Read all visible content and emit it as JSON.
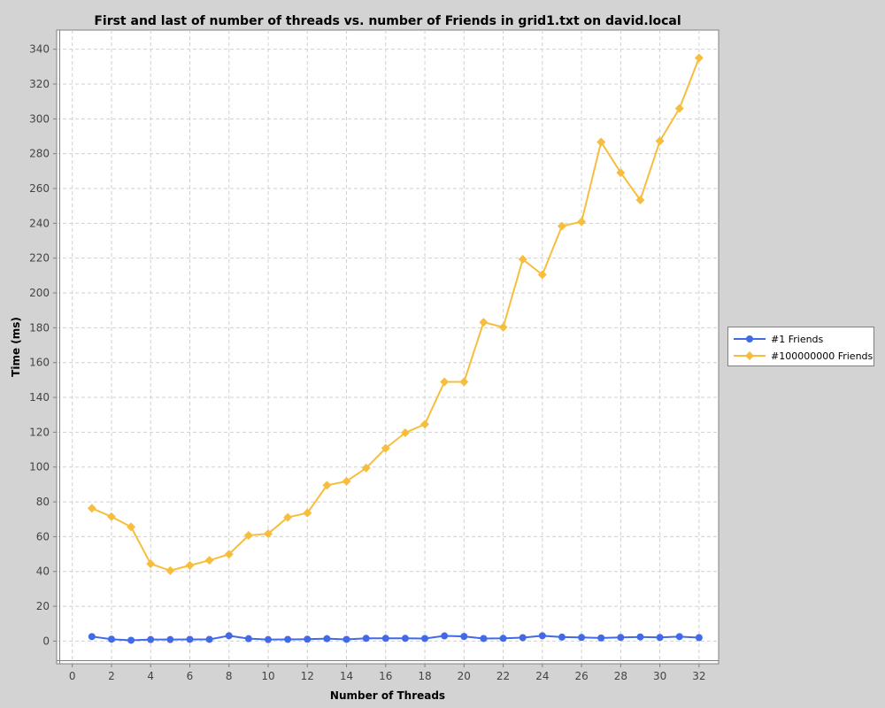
{
  "chart_data": {
    "type": "line",
    "title": "First and last of number of threads vs. number of Friends in grid1.txt on david.local",
    "xlabel": "Number of Threads",
    "ylabel": "Time (ms)",
    "xlim": [
      -0.8,
      33.0
    ],
    "ylim": [
      -13,
      351
    ],
    "xticks": [
      0,
      2,
      4,
      6,
      8,
      10,
      12,
      14,
      16,
      18,
      20,
      22,
      24,
      26,
      28,
      30,
      32
    ],
    "yticks": [
      0,
      20,
      40,
      60,
      80,
      100,
      120,
      140,
      160,
      180,
      200,
      220,
      240,
      260,
      280,
      300,
      320,
      340
    ],
    "grid": true,
    "legend_position": "right",
    "x": [
      1,
      2,
      3,
      4,
      5,
      6,
      7,
      8,
      9,
      10,
      11,
      12,
      13,
      14,
      15,
      16,
      17,
      18,
      19,
      20,
      21,
      22,
      23,
      24,
      25,
      26,
      27,
      28,
      29,
      30,
      31,
      32
    ],
    "series": [
      {
        "name": "#1 Friends",
        "color": "#4169e8",
        "marker": "circle",
        "values": [
          2.6,
          1.1,
          0.5,
          0.9,
          0.9,
          1.0,
          1.0,
          3.1,
          1.4,
          0.9,
          1.0,
          1.1,
          1.4,
          1.0,
          1.6,
          1.6,
          1.6,
          1.5,
          3.0,
          2.7,
          1.5,
          1.6,
          2.0,
          3.1,
          2.3,
          2.1,
          1.8,
          2.1,
          2.4,
          2.1,
          2.6,
          2.0
        ]
      },
      {
        "name": "#100000000 Friends",
        "color": "#f7be3e",
        "marker": "diamond",
        "values": [
          76.3,
          71.5,
          65.6,
          44.4,
          40.5,
          43.5,
          46.4,
          49.9,
          60.7,
          61.7,
          71.1,
          73.6,
          89.5,
          91.8,
          99.4,
          110.8,
          119.7,
          124.6,
          148.9,
          148.9,
          183.2,
          180.3,
          219.3,
          210.5,
          238.4,
          240.9,
          286.7,
          269.1,
          253.4,
          287.3,
          306.0,
          335.0
        ]
      }
    ]
  }
}
